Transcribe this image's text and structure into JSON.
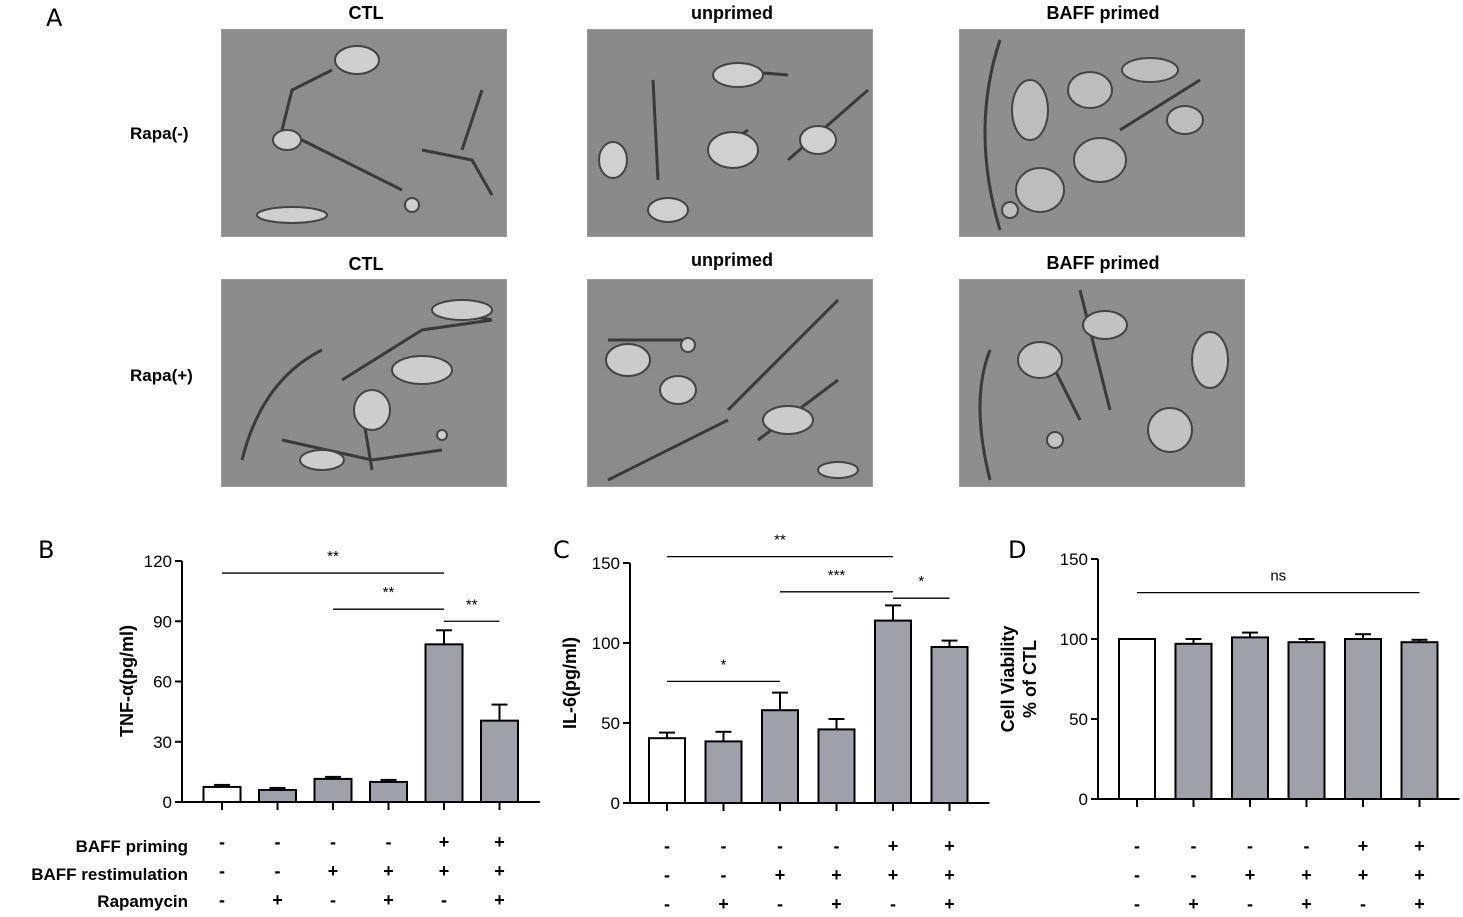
{
  "panel_a": {
    "letter": "A",
    "columns": [
      "CTL",
      "unprimed",
      "BAFF primed"
    ],
    "rows": [
      "Rapa(-)",
      "Rapa(+)"
    ]
  },
  "condition_table": {
    "rows": [
      {
        "label": "BAFF priming",
        "signs": [
          "-",
          "-",
          "-",
          "-",
          "+",
          "+"
        ]
      },
      {
        "label": "BAFF restimulation",
        "signs": [
          "-",
          "-",
          "+",
          "+",
          "+",
          "+"
        ]
      },
      {
        "label": "Rapamycin",
        "signs": [
          "-",
          "+",
          "-",
          "+",
          "-",
          "+"
        ]
      }
    ]
  },
  "colors": {
    "control_bar": "#ffffff",
    "treated_bar": "#a0a0a8",
    "axis": "#000000"
  },
  "chart_data": [
    {
      "panel": "B",
      "type": "bar",
      "ylabel": "TNF-α(pg/ml)",
      "ylim": [
        0,
        120
      ],
      "yticks": [
        0,
        30,
        60,
        90,
        120
      ],
      "values": [
        7.5,
        6,
        11.5,
        10,
        78.5,
        40.5
      ],
      "errors": [
        1,
        1,
        1,
        1,
        7,
        8
      ],
      "significance": [
        {
          "from": 1,
          "to": 5,
          "label": "**",
          "y": 114
        },
        {
          "from": 3,
          "to": 5,
          "label": "**",
          "y": 96
        },
        {
          "from": 5,
          "to": 6,
          "label": "**",
          "y": 90
        }
      ]
    },
    {
      "panel": "C",
      "type": "bar",
      "ylabel": "IL-6(pg/ml)",
      "ylim": [
        0,
        150
      ],
      "yticks": [
        0,
        50,
        100,
        150
      ],
      "values": [
        40.5,
        38.5,
        58,
        46,
        114,
        97.5
      ],
      "errors": [
        3.5,
        6,
        11,
        6.5,
        9.5,
        4
      ],
      "significance": [
        {
          "from": 1,
          "to": 3,
          "label": "*",
          "y": 76
        },
        {
          "from": 1,
          "to": 5,
          "label": "**",
          "y": 154
        },
        {
          "from": 3,
          "to": 5,
          "label": "***",
          "y": 132
        },
        {
          "from": 5,
          "to": 6,
          "label": "*",
          "y": 128
        }
      ]
    },
    {
      "panel": "D",
      "type": "bar",
      "ylabel": "Cell Viability\n% of CTL",
      "ylim": [
        0,
        150
      ],
      "yticks": [
        0,
        50,
        100,
        150
      ],
      "values": [
        100,
        97,
        101,
        98,
        100,
        98
      ],
      "errors": [
        0,
        3,
        3,
        2,
        3,
        1.5
      ],
      "significance": [
        {
          "from": 1,
          "to": 6,
          "label": "ns",
          "y": 129
        }
      ]
    }
  ]
}
